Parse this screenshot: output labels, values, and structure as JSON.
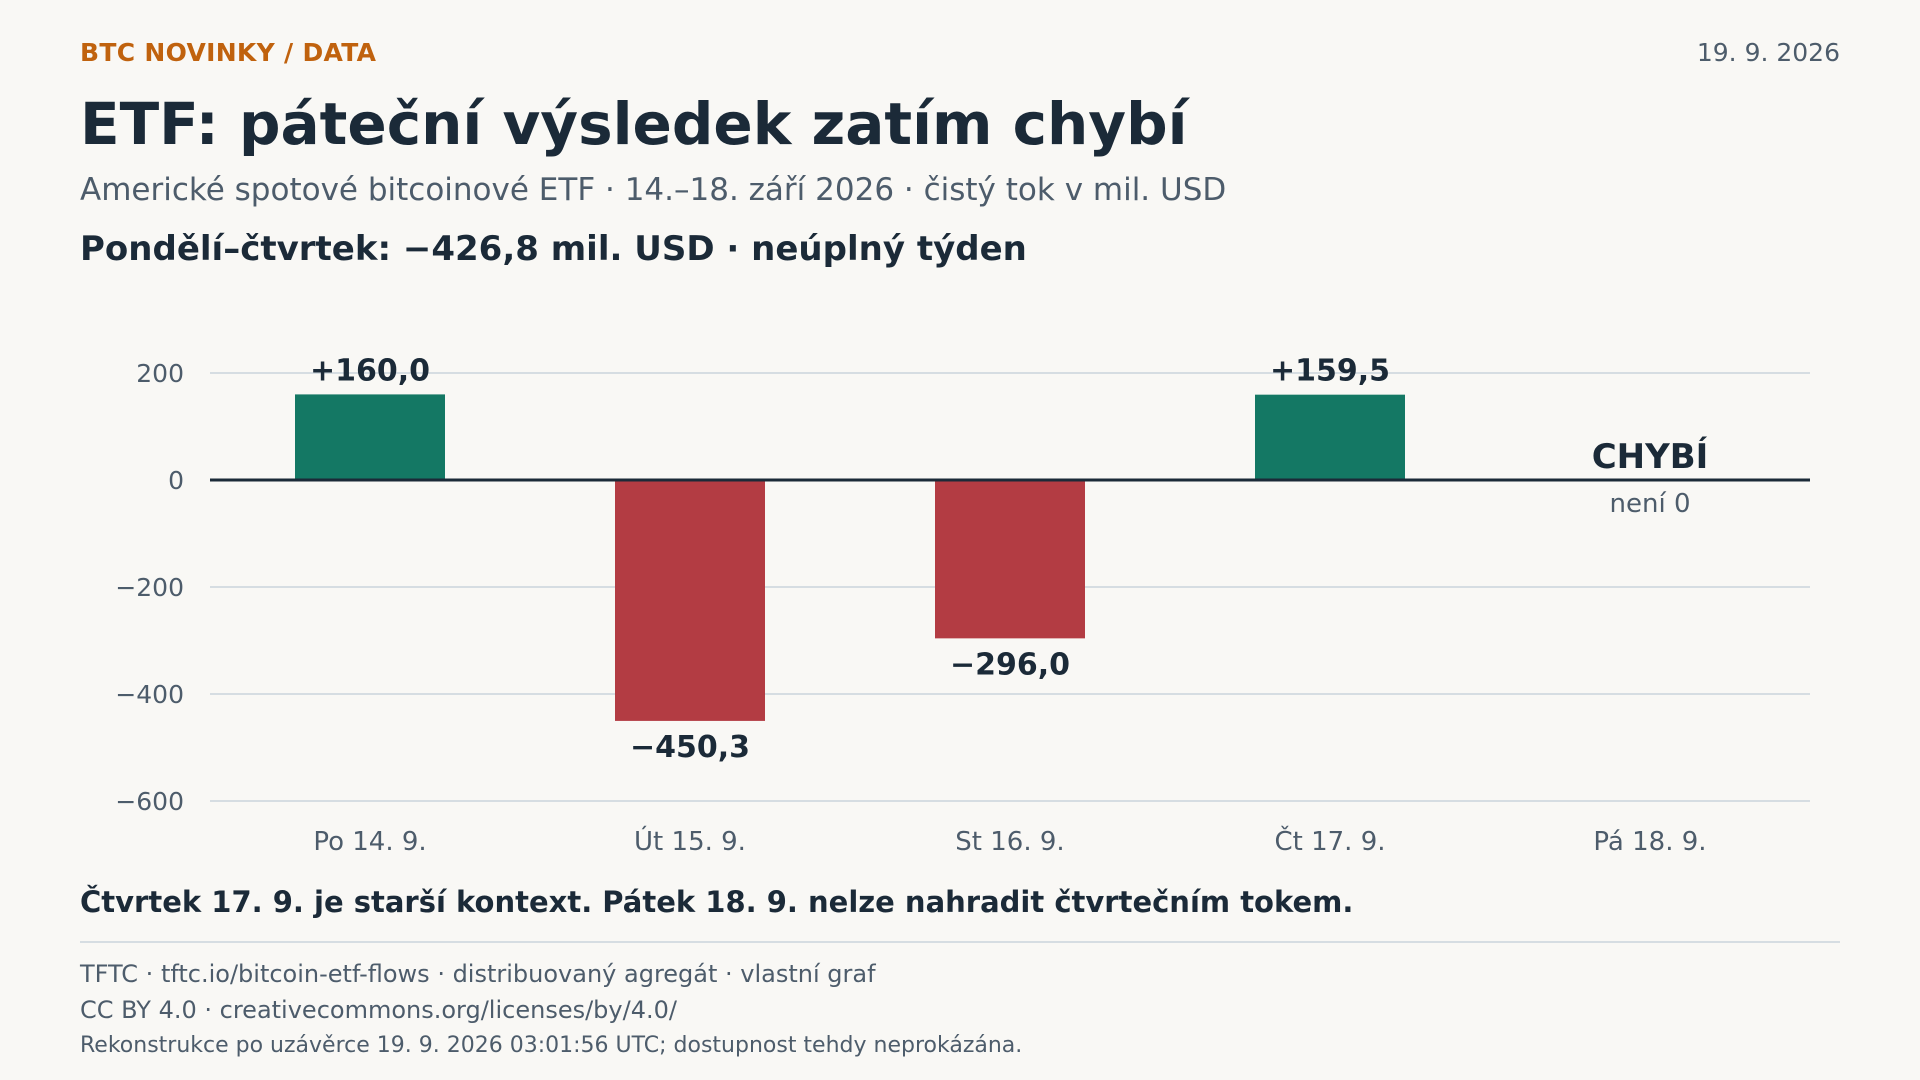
{
  "header": {
    "kicker": "BTC NOVINKY / DATA",
    "date": "19. 9. 2026",
    "title": "ETF: páteční výsledek zatím chybí",
    "subtitle": "Americké spotové bitcoinové ETF · 14.–18. září 2026 · čistý tok v mil. USD",
    "summary": "Pondělí–čtvrtek: −426,8 mil. USD · neúplný týden"
  },
  "chart_data": {
    "type": "bar",
    "categories": [
      "Po 14. 9.",
      "Út 15. 9.",
      "St 16. 9.",
      "Čt 17. 9.",
      "Pá 18. 9."
    ],
    "values": [
      160.0,
      -450.3,
      -296.0,
      159.5,
      null
    ],
    "value_labels": [
      "+160,0",
      "−450,3",
      "−296,0",
      "+159,5",
      ""
    ],
    "missing_label": "CHYBÍ",
    "missing_sublabel": "není 0",
    "ylim": [
      -600,
      200
    ],
    "yticks": [
      200,
      0,
      -200,
      -400,
      -600
    ],
    "ytick_labels": [
      "200",
      "0",
      "−200",
      "−400",
      "−600"
    ],
    "grid": true,
    "colors": {
      "positive": "#147864",
      "negative": "#b33c43",
      "zero_line": "#1b2a38",
      "grid": "#d6dde2"
    }
  },
  "footer": {
    "note": "Čtvrtek 17. 9. je starší kontext. Pátek 18. 9. nelze nahradit čtvrtečním tokem.",
    "source": "TFTC · tftc.io/bitcoin-etf-flows · distribuovaný agregát · vlastní graf",
    "license": "CC BY 4.0 · creativecommons.org/licenses/by/4.0/",
    "disclaimer": "Rekonstrukce po uzávěrce 19. 9. 2026 03:01:56 UTC; dostupnost tehdy neprokázána."
  }
}
